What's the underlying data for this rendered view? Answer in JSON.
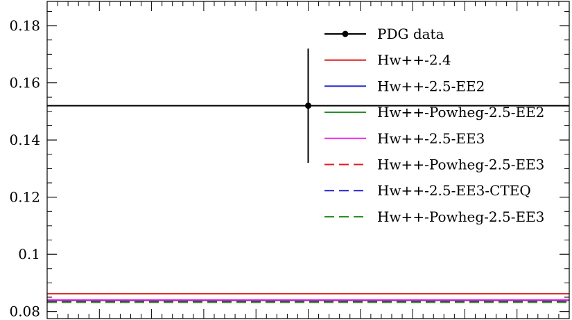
{
  "chart_data": {
    "type": "line",
    "title": "",
    "xlabel": "",
    "ylabel": "",
    "ylim": [
      0.0775,
      0.1885
    ],
    "xlim": [
      0,
      1
    ],
    "y_ticks": [
      0.08,
      0.1,
      0.12,
      0.14,
      0.16,
      0.18
    ],
    "y_tick_labels": [
      "0.08",
      "0.1",
      "0.12",
      "0.14",
      "0.16",
      "0.18"
    ],
    "grid": false,
    "legend_position": "top-right",
    "data_point": {
      "name": "PDG data",
      "x": 0.5,
      "y": 0.152,
      "yerr": 0.02,
      "color": "#000000"
    },
    "series": [
      {
        "name": "Hw++-2.4",
        "y": 0.0862,
        "color": "#e41a1c",
        "dash": "solid"
      },
      {
        "name": "Hw++-2.5-EE2",
        "y": 0.0838,
        "color": "#1f1fcf",
        "dash": "solid"
      },
      {
        "name": "Hw++-Powheg-2.5-EE2",
        "y": 0.0838,
        "color": "#228b22",
        "dash": "solid"
      },
      {
        "name": "Hw++-2.5-EE3",
        "y": 0.084,
        "color": "#ee22ee",
        "dash": "solid"
      },
      {
        "name": "Hw++-Powheg-2.5-EE3",
        "y": 0.0836,
        "color": "#e41a1c",
        "dash": "dashed"
      },
      {
        "name": "Hw++-2.5-EE3-CTEQ",
        "y": 0.0834,
        "color": "#1f1fcf",
        "dash": "dashed"
      },
      {
        "name": "Hw++-Powheg-2.5-EE3",
        "y": 0.0832,
        "color": "#228b22",
        "dash": "dashed"
      }
    ]
  }
}
